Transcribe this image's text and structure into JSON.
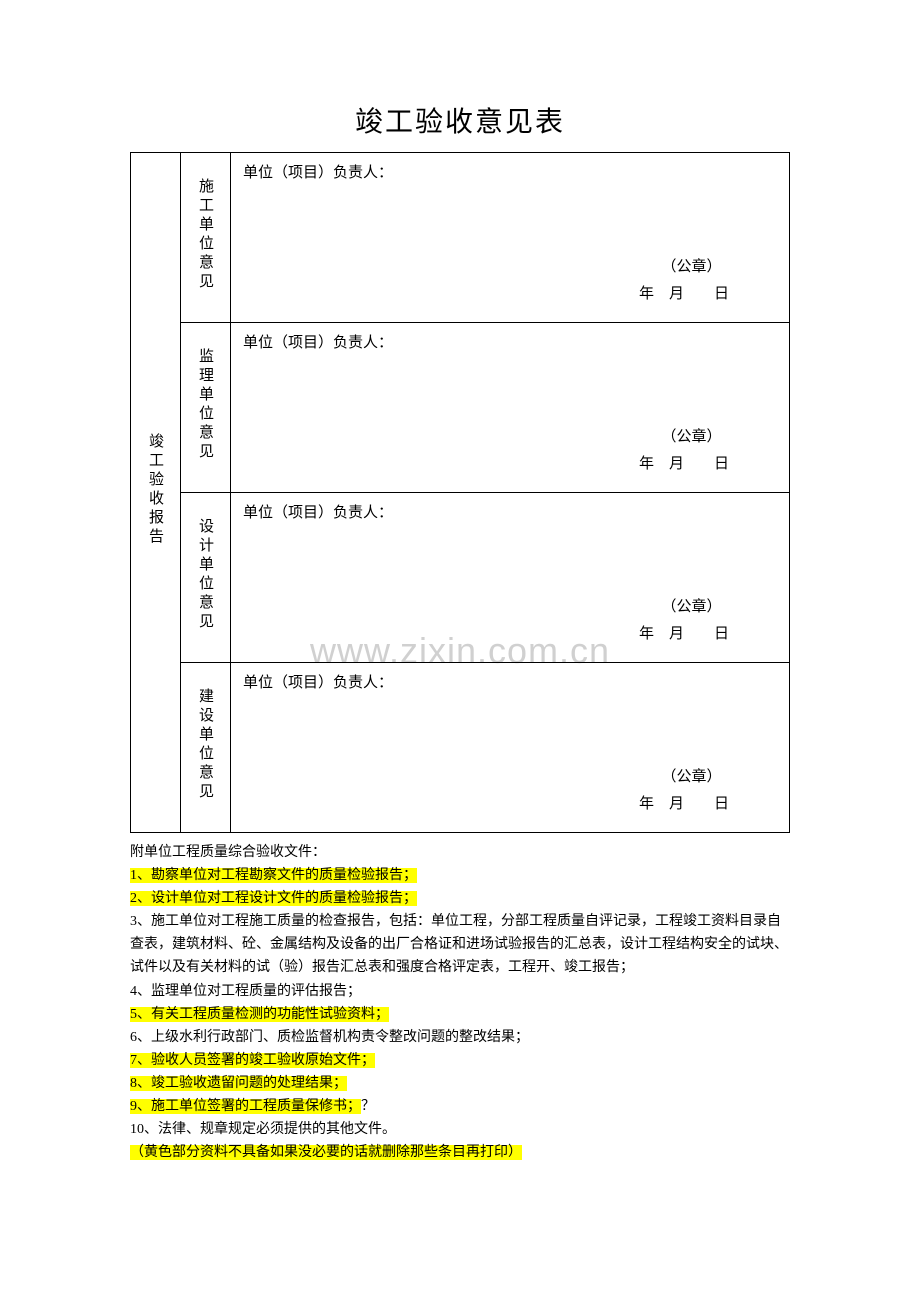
{
  "title": "竣工验收意见表",
  "leftHeader": "竣工验收报告",
  "rows": [
    {
      "label": "施工单位意见",
      "person": "单位（项目）负责人：",
      "stamp": "（公章）",
      "date": "年　月　　日"
    },
    {
      "label": "监理单位意见",
      "person": "单位（项目）负责人：",
      "stamp": "（公章）",
      "date": "年　月　　日"
    },
    {
      "label": "设计单位意见",
      "person": "单位（项目）负责人：",
      "stamp": "（公章）",
      "date": "年　月　　日"
    },
    {
      "label": "建设单位意见",
      "person": "单位（项目）负责人：",
      "stamp": "（公章）",
      "date": "年　月　　日"
    }
  ],
  "notesHeader": "附单位工程质量综合验收文件：",
  "notes": [
    {
      "text": "1、勘察单位对工程勘察文件的质量检验报告；",
      "highlight": true
    },
    {
      "text": "2、设计单位对工程设计文件的质量检验报告；",
      "highlight": true
    },
    {
      "text": "3、施工单位对工程施工质量的检查报告，包括：单位工程，分部工程质量自评记录，工程竣工资料目录自查表，建筑材料、砼、金属结构及设备的出厂合格证和进场试验报告的汇总表，设计工程结构安全的试块、试件以及有关材料的试（验）报告汇总表和强度合格评定表，工程开、竣工报告；",
      "highlight": false
    },
    {
      "text": "4、监理单位对工程质量的评估报告；",
      "highlight": false
    },
    {
      "text": "5、有关工程质量检测的功能性试验资料；",
      "highlight": true
    },
    {
      "text": "6、上级水利行政部门、质检监督机构责令整改问题的整改结果；",
      "highlight": false
    },
    {
      "text": "7、验收人员签署的竣工验收原始文件；",
      "highlight": true
    },
    {
      "text": "8、竣工验收遗留问题的处理结果；",
      "highlight": true
    },
    {
      "text": "9、施工单位签署的工程质量保修书；",
      "highlight": true,
      "suffix": "？"
    },
    {
      "text": "10、法律、规章规定必须提供的其他文件。",
      "highlight": false
    },
    {
      "text": "（黄色部分资料不具备如果没必要的话就删除那些条目再打印）",
      "highlight": true
    }
  ],
  "watermark": "www.zixin.com.cn",
  "colors": {
    "highlight": "#ffff00",
    "text": "#000000",
    "background": "#ffffff",
    "watermark": "#d0d0d0"
  },
  "typography": {
    "titleFontSize": 28,
    "bodyFontSize": 15,
    "notesFontSize": 14
  }
}
